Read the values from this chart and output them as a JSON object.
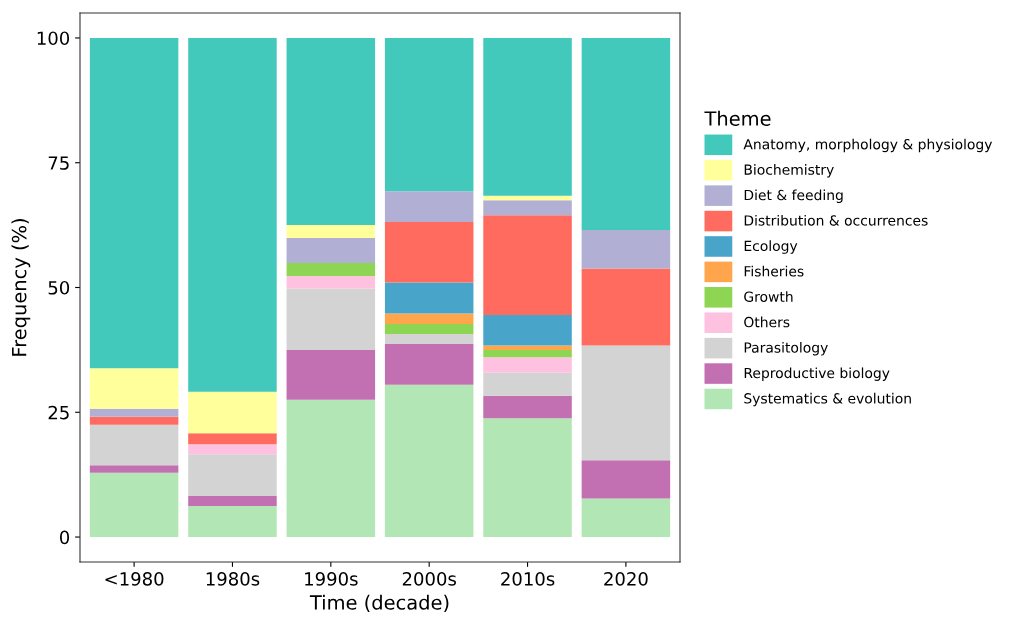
{
  "chart_data": {
    "type": "bar",
    "stacked": true,
    "xlabel": "Time (decade)",
    "ylabel": "Frequency (%)",
    "legend_title": "Theme",
    "legend": "right",
    "categories": [
      "<1980",
      "1980s",
      "1990s",
      "2000s",
      "2010s",
      "2020"
    ],
    "ylim": [
      -5,
      105
    ],
    "yticks": [
      0,
      25,
      50,
      75,
      100
    ],
    "grid": false,
    "series": [
      {
        "name": "Systematics & evolution",
        "color": "#b3e6b5",
        "values": [
          12.9,
          6.2,
          27.5,
          30.5,
          23.8,
          7.7
        ]
      },
      {
        "name": "Reproductive biology",
        "color": "#c370b2",
        "values": [
          1.5,
          2.0,
          10.0,
          8.2,
          4.5,
          7.7
        ]
      },
      {
        "name": "Parasitology",
        "color": "#d3d3d3",
        "values": [
          8.1,
          8.4,
          12.3,
          2.0,
          4.6,
          23.0
        ]
      },
      {
        "name": "Others",
        "color": "#ffc1e0",
        "values": [
          0,
          2.0,
          2.5,
          0,
          3.1,
          0
        ]
      },
      {
        "name": "Growth",
        "color": "#8dd553",
        "values": [
          0,
          0,
          2.6,
          2.0,
          1.5,
          0
        ]
      },
      {
        "name": "Fisheries",
        "color": "#ffa54b",
        "values": [
          0,
          0,
          0,
          2.1,
          0.9,
          0
        ]
      },
      {
        "name": "Ecology",
        "color": "#48a5c9",
        "values": [
          0,
          0,
          0,
          6.2,
          6.1,
          0
        ]
      },
      {
        "name": "Distribution & occurrences",
        "color": "#ff6b5e",
        "values": [
          1.6,
          2.2,
          0,
          12.1,
          20.0,
          15.4
        ]
      },
      {
        "name": "Diet & feeding",
        "color": "#b1b0d4",
        "values": [
          1.6,
          0,
          5.0,
          6.2,
          3.0,
          7.7
        ]
      },
      {
        "name": "Biochemistry",
        "color": "#ffff9c",
        "values": [
          8.1,
          8.3,
          2.6,
          0,
          0.9,
          0
        ]
      },
      {
        "name": "Anatomy, morphology & physiology",
        "color": "#43c9bc",
        "values": [
          66.2,
          70.9,
          37.5,
          30.7,
          31.6,
          38.5
        ]
      }
    ]
  }
}
